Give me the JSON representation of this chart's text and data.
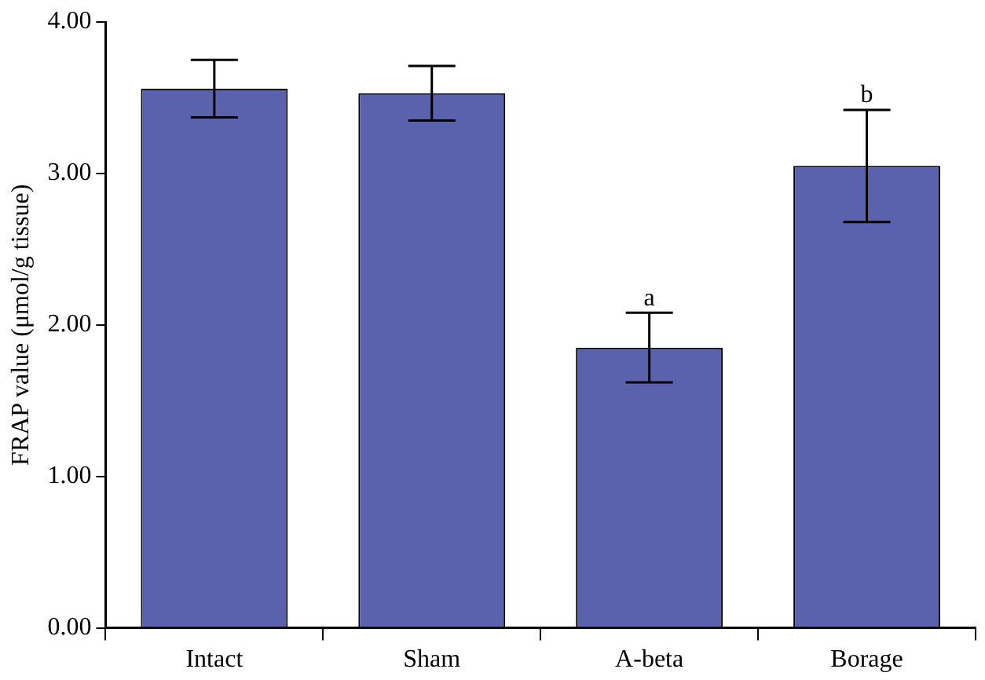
{
  "chart_data": {
    "type": "bar",
    "ylabel": "FRAP value (μmol/g tissue)",
    "categories": [
      "Intact",
      "Sham",
      "A-beta",
      "Borage"
    ],
    "values": [
      3.56,
      3.53,
      1.85,
      3.05
    ],
    "errors": [
      0.19,
      0.18,
      0.23,
      0.37
    ],
    "color": "#5a62ad",
    "ylim": [
      0,
      4
    ],
    "yticks": [
      {
        "value": 0,
        "label": "0.00"
      },
      {
        "value": 1,
        "label": "1.00"
      },
      {
        "value": 2,
        "label": "2.00"
      },
      {
        "value": 3,
        "label": "3.00"
      },
      {
        "value": 4,
        "label": "4.00"
      }
    ],
    "annotations": [
      {
        "text": "a",
        "x": "A-beta",
        "y": 2.08
      },
      {
        "text": "b",
        "x": "Borage",
        "y": 3.42
      }
    ],
    "grid": false,
    "legend": false
  }
}
